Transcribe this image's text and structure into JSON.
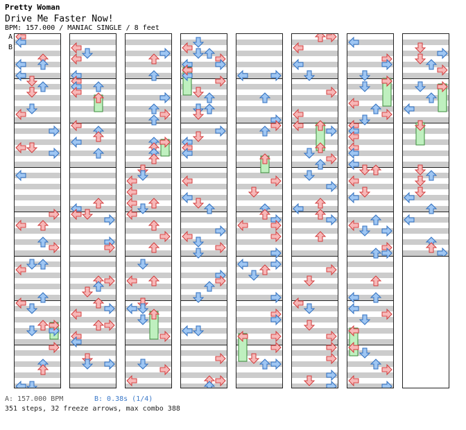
{
  "header": {
    "title": "Pretty Woman",
    "subtitle": "Drive Me Faster Now!",
    "info": "BPM: 157.000 / MANIAC SINGLE / 8 feet"
  },
  "markers": {
    "a": {
      "label": "A",
      "color": "#e05050"
    },
    "b": {
      "label": "B",
      "color": "#3a78c8"
    }
  },
  "footer": {
    "a_text": "A: 157.000 BPM",
    "b_text": "B: 0.38s (1/4)",
    "stats": "351 steps, 32 freeze arrows, max combo 388"
  },
  "colors": {
    "red_fill": "#f7b8b8",
    "red_stroke": "#d23a3a",
    "blue_fill": "#9fc6f2",
    "blue_stroke": "#2f6fc0",
    "freeze_fill": "#bff0bf",
    "freeze_stroke": "#3a8a3a"
  },
  "chart_data": {
    "type": "step-chart",
    "mode": "MANIAC SINGLE",
    "bpm": 157.0,
    "difficulty_feet": 8,
    "step_count": 351,
    "freeze_arrows": 32,
    "max_combo": 388,
    "lanes": [
      "left",
      "down",
      "up",
      "right"
    ],
    "chart_columns": 8,
    "measures_per_column": 8,
    "total_measures": 61,
    "visible_measures_last_column": 5
  }
}
